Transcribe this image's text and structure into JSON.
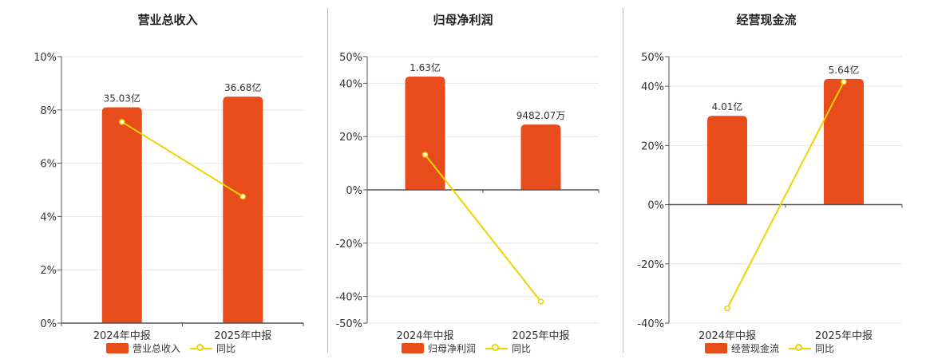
{
  "colors": {
    "bar": "#E84C1A",
    "line": "#F2D200",
    "grid": "#e4e6ef",
    "axis": "#555555"
  },
  "chart_data": [
    {
      "type": "bar",
      "title": "营业总收入",
      "categories": [
        "2024年中报",
        "2025年中报"
      ],
      "ylim": [
        0,
        10
      ],
      "ytick_values": [
        0,
        2,
        4,
        6,
        8,
        10
      ],
      "ytick_labels": [
        "0%",
        "2%",
        "4%",
        "6%",
        "8%",
        "10%"
      ],
      "bar_values": [
        8.1,
        8.5
      ],
      "bar_labels": [
        "35.03亿",
        "36.68亿"
      ],
      "line_values": [
        7.55,
        4.75
      ],
      "legend": [
        "营业总收入",
        "同比"
      ]
    },
    {
      "type": "bar",
      "title": "归母净利润",
      "categories": [
        "2024年中报",
        "2025年中报"
      ],
      "ylim": [
        -50,
        50
      ],
      "ytick_values": [
        -50,
        -40,
        -20,
        0,
        20,
        40,
        50
      ],
      "ytick_labels": [
        "-50%",
        "-40%",
        "-20%",
        "0%",
        "20%",
        "40%",
        "50%"
      ],
      "bar_values": [
        42.5,
        24.5
      ],
      "bar_labels": [
        "1.63亿",
        "9482.07万"
      ],
      "line_values": [
        13.2,
        -41.9
      ],
      "legend": [
        "归母净利润",
        "同比"
      ]
    },
    {
      "type": "bar",
      "title": "经营现金流",
      "categories": [
        "2024年中报",
        "2025年中报"
      ],
      "ylim": [
        -40,
        50
      ],
      "ytick_values": [
        -40,
        -20,
        0,
        20,
        40,
        50
      ],
      "ytick_labels": [
        "-40%",
        "-20%",
        "0%",
        "20%",
        "40%",
        "50%"
      ],
      "bar_values": [
        30.0,
        42.5
      ],
      "bar_labels": [
        "4.01亿",
        "5.64亿"
      ],
      "line_values": [
        -35.0,
        41.5
      ],
      "legend": [
        "经营现金流",
        "同比"
      ]
    }
  ]
}
